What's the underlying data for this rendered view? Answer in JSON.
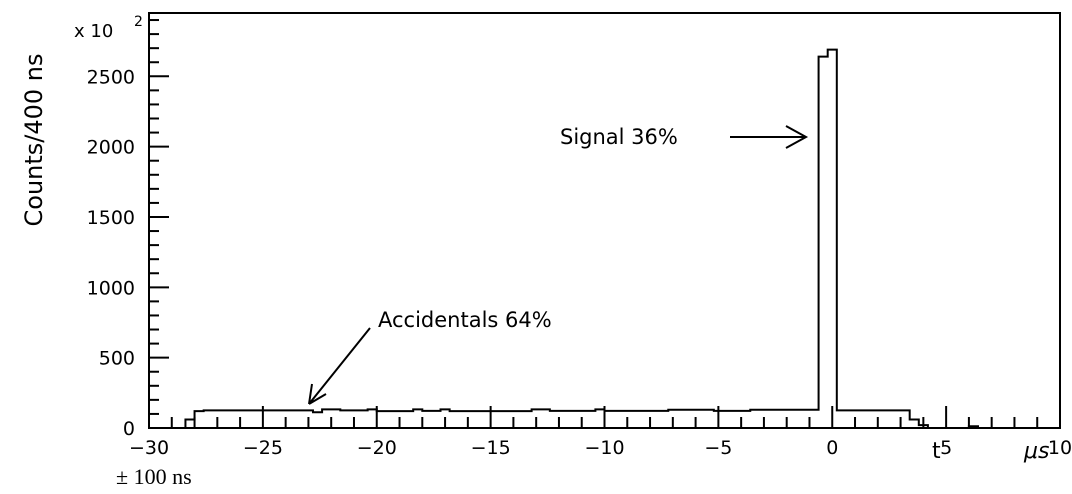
{
  "chart_data": {
    "type": "histogram",
    "ylabel": "Counts/400 ns",
    "y_multiplier": "x 10",
    "y_multiplier_exponent": "2",
    "x_axis_labels": [
      "t",
      "μs"
    ],
    "xlim": [
      -30,
      10
    ],
    "ylim": [
      0,
      2950
    ],
    "xticks": [
      "−30",
      "−25",
      "−20",
      "−15",
      "−10",
      "−5",
      "0",
      "5",
      "10"
    ],
    "yticks": [
      "0",
      "500",
      "1000",
      "1500",
      "2000",
      "2500"
    ],
    "xtick_values": [
      -30,
      -25,
      -20,
      -15,
      -10,
      -5,
      0,
      5,
      10
    ],
    "ytick_values": [
      0,
      500,
      1000,
      1500,
      2000,
      2500
    ],
    "grid": false,
    "bin_width_us": 0.4,
    "bins": [
      {
        "x": [
          -28.4,
          -28.0
        ],
        "y": 60
      },
      {
        "x": [
          -28.0,
          -27.6
        ],
        "y": 120
      },
      {
        "x": [
          -27.6,
          -22.8
        ],
        "y": 125
      },
      {
        "x": [
          -22.8,
          -22.4
        ],
        "y": 112
      },
      {
        "x": [
          -22.4,
          -21.6
        ],
        "y": 132
      },
      {
        "x": [
          -21.6,
          -20.4
        ],
        "y": 125
      },
      {
        "x": [
          -20.4,
          -20.0
        ],
        "y": 132
      },
      {
        "x": [
          -20.0,
          -18.4
        ],
        "y": 120
      },
      {
        "x": [
          -18.4,
          -18.0
        ],
        "y": 132
      },
      {
        "x": [
          -18.0,
          -17.2
        ],
        "y": 122
      },
      {
        "x": [
          -17.2,
          -16.8
        ],
        "y": 132
      },
      {
        "x": [
          -16.8,
          -13.2
        ],
        "y": 120
      },
      {
        "x": [
          -13.2,
          -12.4
        ],
        "y": 132
      },
      {
        "x": [
          -12.4,
          -10.4
        ],
        "y": 122
      },
      {
        "x": [
          -10.4,
          -10.0
        ],
        "y": 132
      },
      {
        "x": [
          -10.0,
          -7.2
        ],
        "y": 122
      },
      {
        "x": [
          -7.2,
          -5.2
        ],
        "y": 130
      },
      {
        "x": [
          -5.2,
          -3.6
        ],
        "y": 122
      },
      {
        "x": [
          -3.6,
          -0.6
        ],
        "y": 130
      },
      {
        "x": [
          -0.6,
          -0.2
        ],
        "y": 2640
      },
      {
        "x": [
          -0.2,
          0.2
        ],
        "y": 2690
      },
      {
        "x": [
          0.2,
          3.4
        ],
        "y": 125
      },
      {
        "x": [
          3.4,
          3.8
        ],
        "y": 60
      },
      {
        "x": [
          3.8,
          4.2
        ],
        "y": 20
      },
      {
        "x": [
          4.2,
          6.0
        ],
        "y": 0
      },
      {
        "x": [
          6.0,
          6.4
        ],
        "y": 12
      },
      {
        "x": [
          6.4,
          10.0
        ],
        "y": 0
      }
    ],
    "annotations": [
      {
        "text": "Signal 36%",
        "x": 0,
        "y": 2200
      },
      {
        "text": "Accidentals 64%",
        "x": -23,
        "y": 130
      }
    ]
  },
  "footnote": "± 100 ns"
}
